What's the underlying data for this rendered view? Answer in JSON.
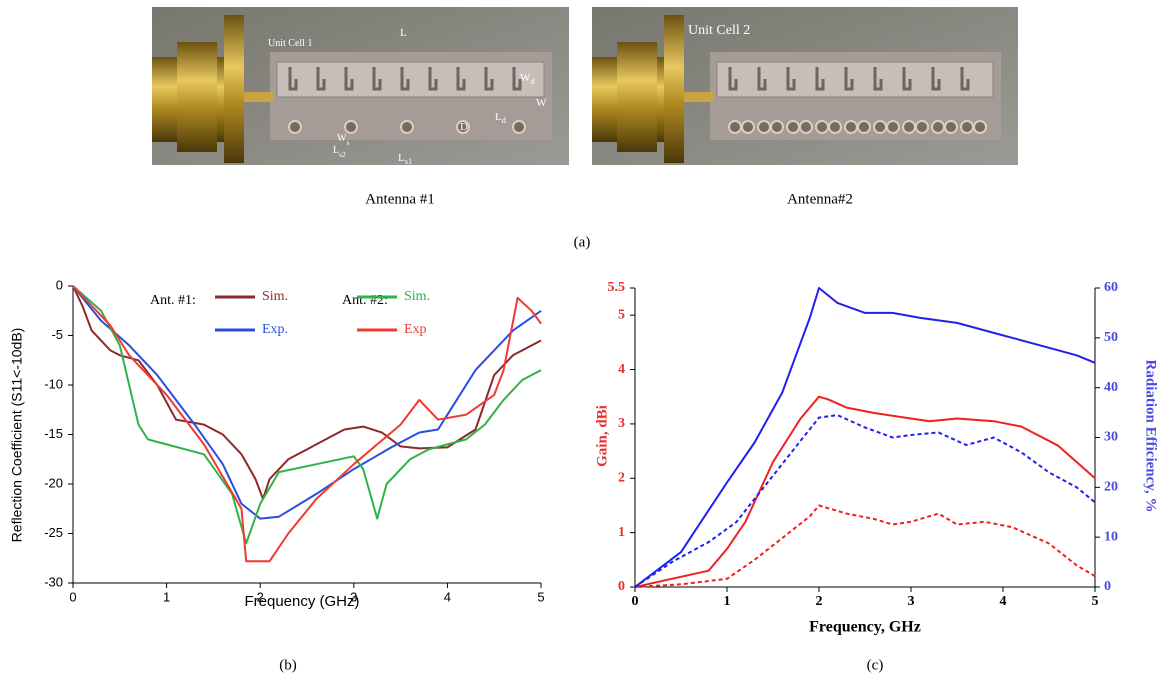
{
  "figure": {
    "photos": [
      {
        "caption": "Antenna #1",
        "labels": [
          {
            "text": "Unit Cell 1"
          },
          {
            "text": "L"
          },
          {
            "text": "W"
          },
          {
            "text": "W",
            "sub": "d"
          },
          {
            "text": "L",
            "sub": "d"
          },
          {
            "text": "W",
            "sub": "s"
          },
          {
            "text": "L",
            "sub": "s1"
          },
          {
            "text": "L",
            "sub": "s2"
          },
          {
            "text": "D"
          }
        ]
      },
      {
        "caption": "Antenna#2",
        "labels": [
          {
            "text": "Unit Cell 2"
          }
        ]
      }
    ],
    "panel_labels": [
      "(a)",
      "(b)",
      "(c)"
    ]
  },
  "chart_data": [
    {
      "type": "line",
      "xlabel": "Frequency (GHz)",
      "ylabel": "Reflection Coefficient (S11<-10dB)",
      "xlim": [
        0,
        5
      ],
      "xticks": [
        0,
        1,
        2,
        3,
        4,
        5
      ],
      "ylim": [
        -30,
        0
      ],
      "yticks": [
        -30,
        -25,
        -20,
        -15,
        -10,
        -5,
        0
      ],
      "legend_groups": [
        "Ant. #1:",
        "Ant. #2:"
      ],
      "series": [
        {
          "name": "Sim.",
          "group": 0,
          "color": "#8b2a2a",
          "x": [
            0,
            0.1,
            0.2,
            0.4,
            0.5,
            0.7,
            0.9,
            1.1,
            1.4,
            1.6,
            1.8,
            1.95,
            2.03,
            2.1,
            2.3,
            2.5,
            2.7,
            2.9,
            3.1,
            3.3,
            3.5,
            3.7,
            4.0,
            4.3,
            4.5,
            4.7,
            5
          ],
          "values": [
            0,
            -2,
            -4.5,
            -6.5,
            -7,
            -7.5,
            -10,
            -13.5,
            -14,
            -15,
            -17,
            -19.5,
            -21.5,
            -19.5,
            -17.5,
            -16.5,
            -15.5,
            -14.5,
            -14.2,
            -14.8,
            -16.2,
            -16.4,
            -16.3,
            -14.5,
            -9,
            -7,
            -5.5
          ]
        },
        {
          "name": "Exp.",
          "group": 0,
          "color": "#2a4de0",
          "x": [
            0,
            0.3,
            0.6,
            0.9,
            1.3,
            1.6,
            1.8,
            2.0,
            2.2,
            2.6,
            3.0,
            3.4,
            3.7,
            3.9,
            4.0,
            4.3,
            4.7,
            5
          ],
          "values": [
            0,
            -3.5,
            -6,
            -9,
            -14,
            -18,
            -22,
            -23.5,
            -23.3,
            -21,
            -18.5,
            -16.3,
            -14.8,
            -14.5,
            -13,
            -8.5,
            -4.5,
            -2.5
          ]
        },
        {
          "name": "Sim.",
          "group": 1,
          "color": "#2fb24a",
          "x": [
            0,
            0.3,
            0.5,
            0.7,
            0.8,
            1.0,
            1.4,
            1.7,
            1.85,
            2.0,
            2.2,
            2.6,
            3.0,
            3.1,
            3.25,
            3.35,
            3.6,
            3.8,
            4.0,
            4.2,
            4.4,
            4.6,
            4.8,
            5
          ],
          "values": [
            0,
            -2.5,
            -6,
            -14,
            -15.5,
            -16,
            -17,
            -21,
            -26,
            -22,
            -18.8,
            -18,
            -17.2,
            -18.5,
            -23.5,
            -20,
            -17.5,
            -16.5,
            -16,
            -15.5,
            -14,
            -11.5,
            -9.5,
            -8.5
          ]
        },
        {
          "name": "Exp",
          "group": 1,
          "color": "#f03a30",
          "x": [
            0,
            0.4,
            0.6,
            1.0,
            1.4,
            1.8,
            1.85,
            2.1,
            2.3,
            2.6,
            3.0,
            3.5,
            3.7,
            3.9,
            4.2,
            4.5,
            4.6,
            4.75,
            4.9,
            5
          ],
          "values": [
            0,
            -4,
            -7,
            -11,
            -16,
            -22.5,
            -27.8,
            -27.8,
            -25,
            -21.5,
            -18,
            -14,
            -11.5,
            -13.5,
            -13,
            -11,
            -8.5,
            -1.2,
            -2.5,
            -3.8
          ]
        }
      ]
    },
    {
      "type": "line",
      "xlabel": "Frequency, GHz",
      "ylabel": "Gain, dBi",
      "y2label": "Radiation Efficiency, %",
      "ylabel_color": "#e83030",
      "y2label_color": "#4a4ae0",
      "xlim": [
        0,
        5
      ],
      "xticks": [
        0,
        1,
        2,
        3,
        4,
        5
      ],
      "ylim": [
        0,
        5.5
      ],
      "yticks": [
        0,
        1,
        2,
        3,
        4,
        5,
        5.5
      ],
      "y2lim": [
        0,
        60
      ],
      "y2ticks": [
        0,
        10,
        20,
        30,
        40,
        50,
        60
      ],
      "series": [
        {
          "color": "#f02020",
          "dash": false,
          "x": [
            0,
            0.4,
            0.8,
            1.0,
            1.2,
            1.5,
            1.8,
            2.0,
            2.1,
            2.3,
            2.6,
            3.0,
            3.2,
            3.5,
            3.9,
            4.2,
            4.6,
            5
          ],
          "values": [
            0,
            0.15,
            0.3,
            0.7,
            1.2,
            2.3,
            3.1,
            3.5,
            3.45,
            3.3,
            3.2,
            3.1,
            3.05,
            3.1,
            3.05,
            2.95,
            2.6,
            2.0
          ]
        },
        {
          "color": "#f02020",
          "dash": true,
          "x": [
            0,
            0.5,
            1.0,
            1.3,
            1.6,
            1.9,
            2.0,
            2.3,
            2.6,
            2.8,
            3.0,
            3.3,
            3.5,
            3.8,
            4.1,
            4.5,
            4.8,
            5
          ],
          "values": [
            0,
            0.05,
            0.15,
            0.5,
            0.9,
            1.3,
            1.5,
            1.35,
            1.25,
            1.15,
            1.2,
            1.35,
            1.15,
            1.2,
            1.1,
            0.8,
            0.4,
            0.2
          ]
        },
        {
          "color": "#2020f0",
          "dash": false,
          "axis": "y2",
          "x": [
            0,
            0.5,
            1.0,
            1.3,
            1.6,
            1.9,
            2.0,
            2.2,
            2.5,
            2.8,
            3.1,
            3.5,
            3.9,
            4.3,
            4.6,
            4.8,
            5
          ],
          "values": [
            0,
            7,
            21,
            29,
            39,
            54,
            60,
            57,
            55,
            55,
            54,
            53,
            51,
            49,
            47.5,
            46.5,
            45
          ]
        },
        {
          "color": "#2020f0",
          "dash": true,
          "axis": "y2",
          "x": [
            0,
            0.4,
            0.8,
            1.1,
            1.4,
            1.7,
            2.0,
            2.2,
            2.5,
            2.8,
            3.0,
            3.3,
            3.6,
            3.9,
            4.2,
            4.5,
            4.8,
            5
          ],
          "values": [
            0,
            5,
            9,
            13,
            20,
            27,
            34,
            34.5,
            32,
            30,
            30.5,
            31,
            28.5,
            30,
            27,
            23,
            20,
            17
          ]
        }
      ]
    }
  ]
}
